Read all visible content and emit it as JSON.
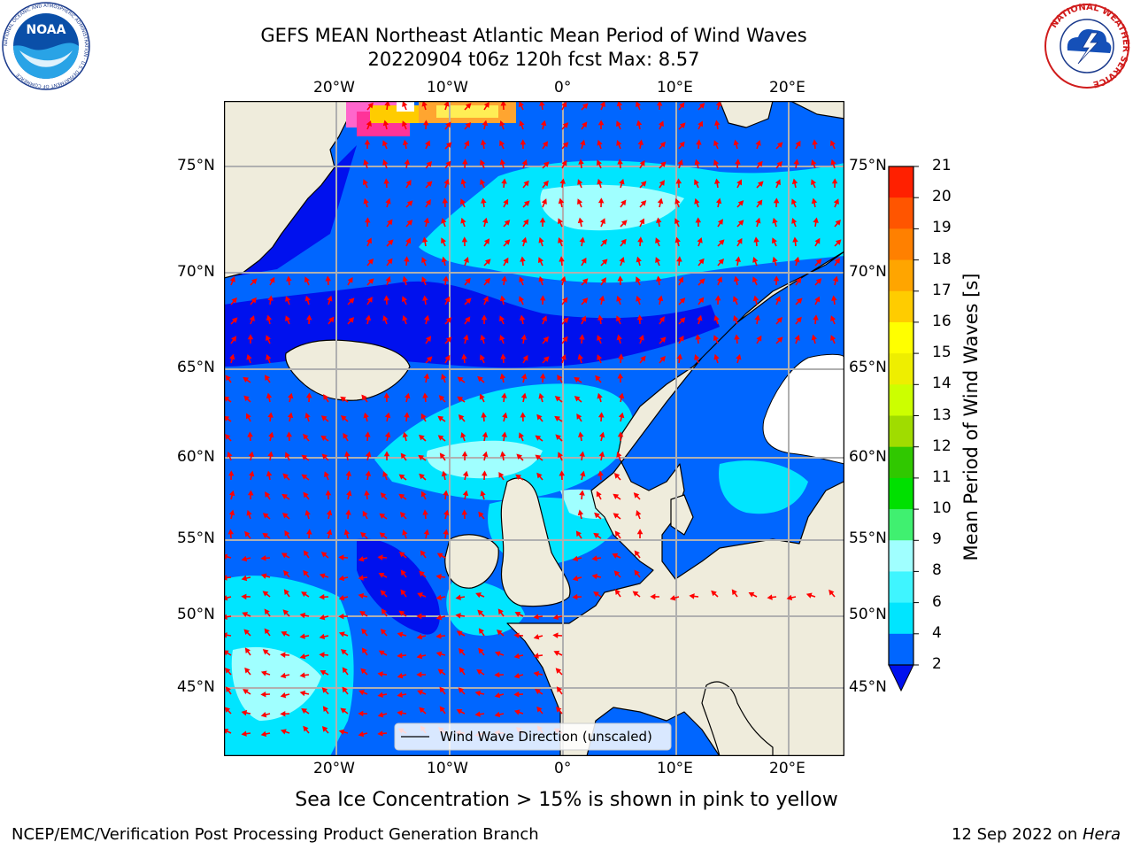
{
  "title": {
    "line1": "GEFS MEAN Northeast Atlantic Mean Period of Wind Waves",
    "line2": "20220904 t06z 120h fcst   Max: 8.57"
  },
  "map": {
    "lon_labels_top": [
      "20°W",
      "10°W",
      "0°",
      "10°E",
      "20°E"
    ],
    "lon_labels_bottom": [
      "20°W",
      "10°W",
      "0°",
      "10°E",
      "20°E"
    ],
    "lat_labels_left": [
      "75°N",
      "70°N",
      "65°N",
      "60°N",
      "55°N",
      "50°N",
      "45°N"
    ],
    "lat_labels_right": [
      "75°N",
      "70°N",
      "65°N",
      "60°N",
      "55°N",
      "50°N",
      "45°N"
    ],
    "legend_label": "Wind Wave Direction (unscaled)"
  },
  "colorbar": {
    "label": "Mean Period of Wind Waves [s]",
    "ticks": [
      "2",
      "4",
      "6",
      "8",
      "9",
      "10",
      "11",
      "12",
      "13",
      "14",
      "15",
      "16",
      "17",
      "18",
      "19",
      "20",
      "21"
    ],
    "colors": [
      "#0066ff",
      "#00e5ff",
      "#3ff5ff",
      "#a0ffff",
      "#40f070",
      "#00e000",
      "#30c800",
      "#a0dc00",
      "#ccff00",
      "#eeee00",
      "#ffff00",
      "#ffcc00",
      "#ffa500",
      "#ff8000",
      "#ff5500",
      "#ff2000"
    ],
    "under_color": "#0011ee"
  },
  "caption": "Sea Ice Concentration > 15% is shown in pink to yellow",
  "footer": {
    "left": "NCEP/EMC/Verification Post Processing Product Generation Branch",
    "right_prefix": "12 Sep 2022 on ",
    "right_host": "Hera"
  },
  "logos": {
    "noaa_text": "NOAA",
    "noaa_ring": "NATIONAL OCEANIC AND ATMOSPHERIC ADMINISTRATION · U.S. DEPARTMENT OF COMMERCE",
    "nws_ring": "NATIONAL WEATHER SERVICE"
  }
}
